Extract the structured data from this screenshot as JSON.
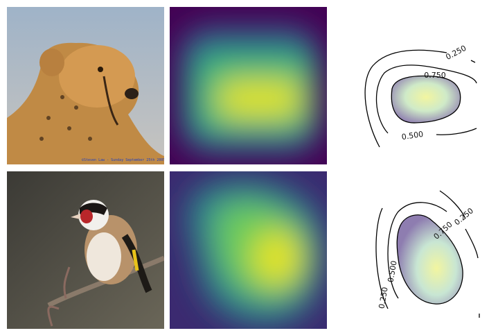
{
  "figure": {
    "rows": [
      {
        "watermark": "©Steven Law - Sunday September 25th 2005",
        "contour_labels": [
          "0.250",
          "0.750",
          "0.500"
        ]
      },
      {
        "contour_labels": [
          "0.750",
          "0.250",
          "0.500",
          "0.250"
        ]
      }
    ]
  }
}
